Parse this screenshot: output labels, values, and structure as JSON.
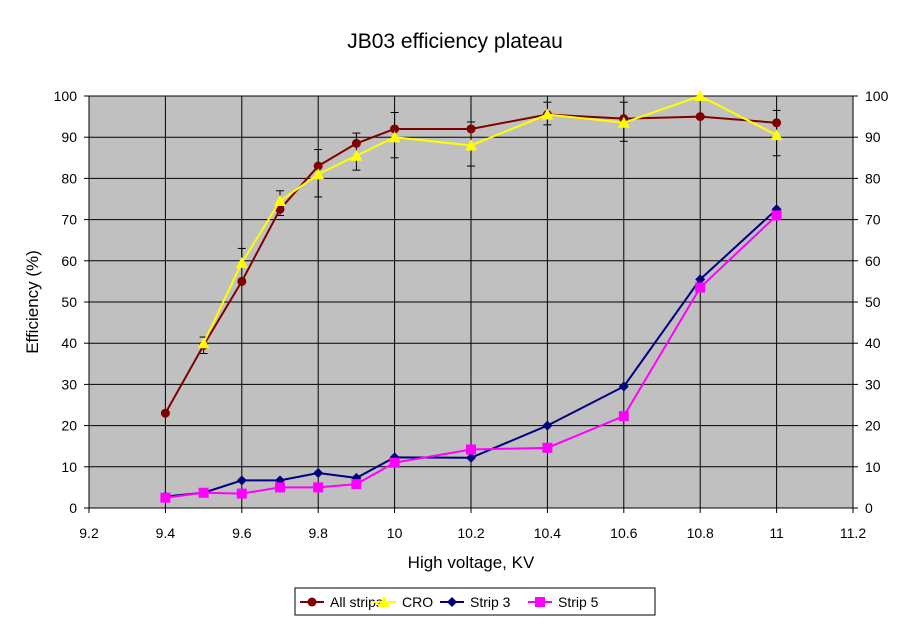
{
  "chart_data": {
    "type": "line",
    "title": "JB03 efficiency plateau",
    "xlabel": "High voltage, KV",
    "ylabel": "Efficiency (%)",
    "xlim": [
      9.2,
      11.2
    ],
    "ylim": [
      0,
      100
    ],
    "x_ticks": [
      "9.2",
      "9.4",
      "9.6",
      "9.8",
      "10",
      "10.2",
      "10.4",
      "10.6",
      "10.8",
      "11",
      "11.2"
    ],
    "y_ticks": [
      "0",
      "10",
      "20",
      "30",
      "40",
      "50",
      "60",
      "70",
      "80",
      "90",
      "100"
    ],
    "grid": true,
    "legend_placement": "bottom",
    "series": [
      {
        "name": "All strips",
        "color": "#800000",
        "marker": "circle",
        "x": [
          9.4,
          9.5,
          9.6,
          9.7,
          9.8,
          9.9,
          10,
          10.2,
          10.4,
          10.6,
          10.8,
          11
        ],
        "y": [
          23,
          39.5,
          55,
          72.5,
          83,
          88.5,
          92,
          92,
          95.5,
          94.5,
          95,
          93.5
        ],
        "err_high": [
          null,
          41.5,
          null,
          77,
          87,
          91,
          96,
          93.7,
          98.5,
          98.5,
          null,
          96.5
        ],
        "err_low": [
          null,
          37.5,
          null,
          71,
          75.5,
          82,
          85,
          83,
          93,
          89,
          null,
          85.5
        ]
      },
      {
        "name": "CRO",
        "color": "#ffff00",
        "marker": "triangle",
        "x": [
          9.5,
          9.6,
          9.7,
          9.8,
          9.9,
          10,
          10.2,
          10.4,
          10.6,
          10.8,
          11
        ],
        "y": [
          40,
          59.5,
          74.5,
          81,
          85.5,
          90,
          88,
          95.5,
          93.5,
          100,
          90.5
        ],
        "err_high": [
          null,
          63,
          null,
          null,
          null,
          null,
          null,
          null,
          null,
          null,
          null
        ],
        "err_low": [
          null,
          null,
          null,
          null,
          null,
          null,
          null,
          null,
          null,
          null,
          null
        ]
      },
      {
        "name": "Strip 3",
        "color": "#000080",
        "marker": "diamond",
        "x": [
          9.4,
          9.5,
          9.6,
          9.7,
          9.8,
          9.9,
          10,
          10.2,
          10.4,
          10.6,
          10.8,
          11
        ],
        "y": [
          2.8,
          3.7,
          6.7,
          6.7,
          8.5,
          7.3,
          12.3,
          12.2,
          20,
          29.5,
          55.5,
          72.5
        ]
      },
      {
        "name": "Strip 5",
        "color": "#ff00ff",
        "marker": "square",
        "x": [
          9.4,
          9.5,
          9.6,
          9.7,
          9.8,
          9.9,
          10,
          10.2,
          10.4,
          10.6,
          10.8,
          11
        ],
        "y": [
          2.5,
          3.7,
          3.5,
          5,
          5,
          5.8,
          11,
          14.2,
          14.6,
          22.3,
          53.5,
          71
        ]
      }
    ]
  }
}
